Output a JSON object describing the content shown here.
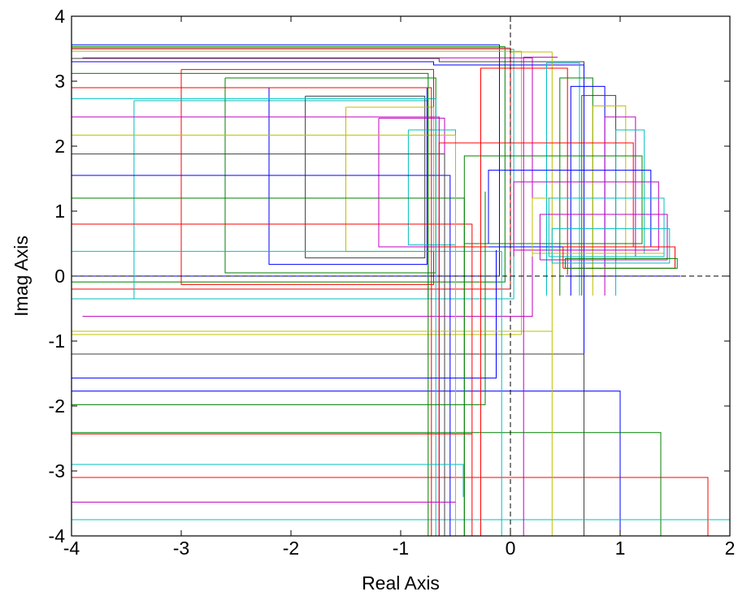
{
  "chart_data": {
    "type": "line",
    "title": "",
    "xlabel": "Real Axis",
    "ylabel": "Imag Axis",
    "xlim": [
      -4,
      2
    ],
    "ylim": [
      -4,
      4
    ],
    "xticks": [
      -4,
      -3,
      -2,
      -1,
      0,
      1,
      2
    ],
    "yticks": [
      -4,
      -3,
      -2,
      -1,
      0,
      1,
      2,
      3,
      4
    ],
    "xtick_labels": [
      "-4",
      "-3",
      "-2",
      "-1",
      "0",
      "1",
      "2"
    ],
    "ytick_labels": [
      "-4",
      "-3",
      "-2",
      "-1",
      "0",
      "1",
      "2",
      "3",
      "4"
    ],
    "grid": false,
    "legend": "none",
    "reference_lines": {
      "x": 0,
      "y": 0,
      "style": "dashed",
      "color": "#000000"
    },
    "color_cycle": [
      "#0000ff",
      "#008000",
      "#ff0000",
      "#00bfbf",
      "#bf00bf",
      "#bfbf00",
      "#404040"
    ],
    "series": [
      {
        "color": "#0000ff",
        "x": [
          -4,
          -0.1,
          -0.1,
          -4
        ],
        "y": [
          3.56,
          3.56,
          0.0,
          0.0
        ]
      },
      {
        "color": "#008000",
        "x": [
          -4,
          -0.05,
          -0.05,
          -4
        ],
        "y": [
          3.53,
          3.53,
          -0.09,
          -0.09
        ]
      },
      {
        "color": "#ff0000",
        "x": [
          -4,
          0.0,
          0.0,
          -4
        ],
        "y": [
          3.51,
          3.51,
          -0.2,
          -0.2
        ]
      },
      {
        "color": "#00bfbf",
        "x": [
          -4,
          0.03,
          0.03,
          -4
        ],
        "y": [
          3.49,
          3.49,
          -0.35,
          -0.35
        ]
      },
      {
        "color": "#bfbf00",
        "x": [
          -4,
          0.1,
          0.1,
          -4
        ],
        "y": [
          3.46,
          3.46,
          -0.9,
          -0.9
        ]
      },
      {
        "color": "#bf00bf",
        "x": [
          -3.9,
          0.2,
          0.2,
          -3.9
        ],
        "y": [
          3.36,
          3.36,
          -0.62,
          -0.62
        ]
      },
      {
        "color": "#404040",
        "x": [
          -4,
          -0.65,
          -0.65,
          0.67,
          0.67
        ],
        "y": [
          3.35,
          3.35,
          3.3,
          3.3,
          -4.0
        ]
      },
      {
        "color": "#0000ff",
        "x": [
          -4,
          -0.7,
          -0.7,
          0.67,
          0.67
        ],
        "y": [
          3.3,
          3.3,
          3.25,
          3.25,
          -4.0
        ]
      },
      {
        "color": "#404040",
        "x": [
          -4,
          0.67,
          0.67
        ],
        "y": [
          -1.2,
          -1.2,
          -4.0
        ]
      },
      {
        "color": "#0000ff",
        "x": [
          -4,
          1.0,
          1.0
        ],
        "y": [
          -1.77,
          -1.77,
          -4.0
        ]
      },
      {
        "color": "#008000",
        "x": [
          -4,
          1.37,
          1.37
        ],
        "y": [
          -2.41,
          -2.41,
          -4.0
        ]
      },
      {
        "color": "#ff0000",
        "x": [
          -4,
          1.8,
          1.8
        ],
        "y": [
          -3.1,
          -3.1,
          -4.0
        ]
      },
      {
        "color": "#00bfbf",
        "x": [
          -4,
          2.0
        ],
        "y": [
          -3.75,
          -3.75
        ]
      },
      {
        "color": "#ff0000",
        "x": [
          -3.0,
          -0.7,
          -0.7,
          -3.0,
          -3.0
        ],
        "y": [
          3.18,
          3.18,
          -0.13,
          -0.13,
          3.18
        ]
      },
      {
        "color": "#00bfbf",
        "x": [
          -3.43,
          -0.75,
          -0.75,
          -3.43,
          -3.43
        ],
        "y": [
          2.7,
          2.7,
          -0.35,
          -0.35,
          2.7
        ]
      },
      {
        "color": "#008000",
        "x": [
          -2.6,
          -0.68,
          -0.68,
          -2.6,
          -2.6
        ],
        "y": [
          3.05,
          3.05,
          0.05,
          0.05,
          3.05
        ]
      },
      {
        "color": "#0000ff",
        "x": [
          -2.2,
          -0.76,
          -0.76,
          -2.2,
          -2.2
        ],
        "y": [
          2.9,
          2.9,
          0.18,
          0.18,
          2.9
        ]
      },
      {
        "color": "#404040",
        "x": [
          -1.87,
          -0.78,
          -0.78,
          -1.87,
          -1.87
        ],
        "y": [
          2.77,
          2.77,
          0.28,
          0.28,
          2.77
        ]
      },
      {
        "color": "#bfbf00",
        "x": [
          -1.5,
          -0.7,
          -0.7,
          -1.5,
          -1.5
        ],
        "y": [
          2.6,
          2.6,
          0.38,
          0.38,
          2.6
        ]
      },
      {
        "color": "#bf00bf",
        "x": [
          -1.2,
          -0.6,
          -0.6,
          -1.2,
          -1.2
        ],
        "y": [
          2.43,
          2.43,
          0.45,
          0.45,
          2.43
        ]
      },
      {
        "color": "#00bfbf",
        "x": [
          -0.93,
          -0.5,
          -0.5,
          -0.93,
          -0.93
        ],
        "y": [
          2.25,
          2.25,
          0.48,
          0.48,
          2.25
        ]
      },
      {
        "color": "#0000ff",
        "x": [
          -4,
          -0.55,
          -0.55
        ],
        "y": [
          1.55,
          1.55,
          -4.0
        ]
      },
      {
        "color": "#008000",
        "x": [
          -4,
          -0.42,
          -0.42
        ],
        "y": [
          1.2,
          1.2,
          -4.0
        ]
      },
      {
        "color": "#ff0000",
        "x": [
          -4,
          -0.35,
          -0.35
        ],
        "y": [
          0.8,
          0.8,
          -4.0
        ]
      },
      {
        "color": "#00bfbf",
        "x": [
          -4,
          -0.08,
          -0.08
        ],
        "y": [
          0.38,
          0.38,
          -4.0
        ]
      },
      {
        "color": "#bfbf00",
        "x": [
          -4,
          -0.5,
          -0.5
        ],
        "y": [
          2.17,
          2.17,
          -4.0
        ]
      },
      {
        "color": "#404040",
        "x": [
          -4,
          -0.6,
          -0.6
        ],
        "y": [
          1.88,
          1.88,
          -4.0
        ]
      },
      {
        "color": "#bf00bf",
        "x": [
          -4,
          -0.65,
          -0.65
        ],
        "y": [
          2.45,
          2.45,
          -4.0
        ]
      },
      {
        "color": "#00bfbf",
        "x": [
          -4,
          -0.68,
          -0.68
        ],
        "y": [
          2.73,
          2.73,
          -4.0
        ]
      },
      {
        "color": "#ff0000",
        "x": [
          -4,
          -0.72,
          -0.72
        ],
        "y": [
          2.9,
          2.9,
          -4.0
        ]
      },
      {
        "color": "#008000",
        "x": [
          -4,
          -0.75,
          -0.75
        ],
        "y": [
          3.12,
          3.12,
          -4.0
        ]
      },
      {
        "color": "#bf00bf",
        "x": [
          -4,
          -0.5,
          -0.5,
          -4
        ],
        "y": [
          -3.48,
          -3.48,
          -3.48,
          -3.48
        ]
      },
      {
        "color": "#00bfbf",
        "x": [
          -4,
          -0.43,
          -0.43
        ],
        "y": [
          -2.9,
          -2.9,
          -3.4
        ]
      },
      {
        "color": "#ff0000",
        "x": [
          -4,
          -0.35,
          -0.35
        ],
        "y": [
          -2.43,
          -2.43,
          -2.43
        ]
      },
      {
        "color": "#008000",
        "x": [
          -4,
          -0.23,
          -0.23,
          -0.23
        ],
        "y": [
          -1.98,
          -1.98,
          -1.98,
          1.3
        ]
      },
      {
        "color": "#0000ff",
        "x": [
          -4,
          -0.13,
          -0.13
        ],
        "y": [
          -1.57,
          -1.57,
          0.4
        ]
      },
      {
        "color": "#bfbf00",
        "x": [
          -4,
          0.38,
          0.38,
          0.38
        ],
        "y": [
          -0.85,
          -0.85,
          -0.6,
          -4.0
        ]
      },
      {
        "color": "#bfbf00",
        "x": [
          0.38,
          0.38,
          0.0
        ],
        "y": [
          -0.6,
          3.45,
          3.45
        ]
      },
      {
        "color": "#bf00bf",
        "x": [
          0.12,
          0.12,
          0.12
        ],
        "y": [
          -4.0,
          3.37,
          3.37
        ]
      },
      {
        "color": "#bf00bf",
        "x": [
          0.12,
          0.43
        ],
        "y": [
          3.37,
          3.37
        ]
      },
      {
        "color": "#ff0000",
        "x": [
          -0.27,
          -0.27,
          0.52,
          0.52
        ],
        "y": [
          -4.0,
          3.2,
          3.2,
          0.02
        ]
      },
      {
        "color": "#00bfbf",
        "x": [
          0.33,
          0.33,
          0.63,
          0.63
        ],
        "y": [
          -0.3,
          3.28,
          3.28,
          -0.3
        ]
      },
      {
        "color": "#008000",
        "x": [
          0.45,
          0.45,
          0.75,
          0.75
        ],
        "y": [
          -0.3,
          3.05,
          3.05,
          0.1
        ]
      },
      {
        "color": "#0000ff",
        "x": [
          0.55,
          0.55,
          0.86,
          0.86
        ],
        "y": [
          -0.3,
          2.92,
          2.92,
          0.15
        ]
      },
      {
        "color": "#404040",
        "x": [
          0.65,
          0.65,
          0.96,
          0.96
        ],
        "y": [
          -0.3,
          2.78,
          2.78,
          0.2
        ]
      },
      {
        "color": "#bfbf00",
        "x": [
          0.75,
          0.75,
          1.05,
          1.05
        ],
        "y": [
          -0.3,
          2.62,
          2.62,
          0.25
        ]
      },
      {
        "color": "#bf00bf",
        "x": [
          0.86,
          0.86,
          1.14,
          1.14
        ],
        "y": [
          -0.3,
          2.45,
          2.45,
          0.3
        ]
      },
      {
        "color": "#00bfbf",
        "x": [
          0.96,
          0.96,
          1.22,
          1.22
        ],
        "y": [
          -0.3,
          2.25,
          2.25,
          0.35
        ]
      },
      {
        "color": "#ff0000",
        "x": [
          -0.65,
          -0.65,
          1.12,
          1.12,
          -0.65
        ],
        "y": [
          -4.0,
          2.05,
          2.05,
          0.45,
          0.45
        ]
      },
      {
        "color": "#008000",
        "x": [
          -0.42,
          -0.42,
          1.2,
          1.2,
          -0.42
        ],
        "y": [
          -4.0,
          1.85,
          1.85,
          0.5,
          0.5
        ]
      },
      {
        "color": "#0000ff",
        "x": [
          -0.2,
          -0.2,
          1.28,
          1.28,
          -0.2
        ],
        "y": [
          0.5,
          1.63,
          1.63,
          0.45,
          0.45
        ]
      },
      {
        "color": "#bf00bf",
        "x": [
          0.03,
          0.03,
          1.35,
          1.35,
          0.03
        ],
        "y": [
          0.3,
          1.45,
          1.45,
          0.4,
          0.4
        ]
      },
      {
        "color": "#bfbf00",
        "x": [
          0.2,
          0.2,
          1.4,
          1.4,
          0.2
        ],
        "y": [
          0.3,
          1.2,
          1.2,
          0.35,
          0.35
        ]
      },
      {
        "color": "#00bfbf",
        "x": [
          0.35,
          0.35,
          1.4,
          1.4,
          0.35
        ],
        "y": [
          0.3,
          1.2,
          1.2,
          0.3,
          0.3
        ]
      },
      {
        "color": "#bf00bf",
        "x": [
          0.27,
          0.27,
          1.43,
          1.43,
          0.27
        ],
        "y": [
          0.25,
          0.95,
          0.95,
          0.25,
          0.25
        ]
      },
      {
        "color": "#00bfbf",
        "x": [
          0.38,
          0.38,
          1.45,
          1.45,
          0.38
        ],
        "y": [
          0.2,
          0.73,
          0.73,
          0.2,
          0.2
        ]
      },
      {
        "color": "#ff0000",
        "x": [
          0.48,
          0.48,
          1.5,
          1.5,
          0.48
        ],
        "y": [
          0.12,
          0.45,
          0.45,
          0.12,
          0.12
        ]
      },
      {
        "color": "#008000",
        "x": [
          0.5,
          0.5,
          1.52,
          1.52,
          0.5
        ],
        "y": [
          0.12,
          0.27,
          0.27,
          0.12,
          0.12
        ]
      },
      {
        "color": "#0000ff",
        "x": [
          0.5,
          1.55
        ],
        "y": [
          0.0,
          0.0
        ]
      }
    ]
  }
}
